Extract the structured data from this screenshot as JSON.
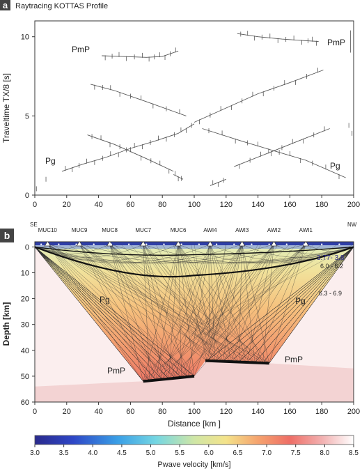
{
  "panel_a": {
    "letter": "a",
    "title": "Raytracing KOTTAS Profile",
    "ylabel": "Traveltime TX/8 [s]",
    "xticks": [
      "0",
      "20",
      "40",
      "60",
      "80",
      "100",
      "120",
      "140",
      "160",
      "180",
      "200"
    ],
    "yticks": [
      "0",
      "5",
      "10"
    ],
    "phase_labels": [
      "PmP",
      "PmP",
      "Pg",
      "Pg"
    ]
  },
  "panel_b": {
    "letter": "b",
    "se": "SE",
    "nw": "NW",
    "stations": [
      "MUC10",
      "MUC9",
      "MUC8",
      "MUC7",
      "MUC6",
      "AWI4",
      "AWI3",
      "AWI2",
      "AWI1"
    ],
    "velocity_labels": [
      "3.77- 3.8",
      "6.0 - 6.2",
      "6.3 - 6.9"
    ],
    "phase_labels": [
      "Pg",
      "Pg",
      "PmP",
      "PmP"
    ],
    "ylabel": "Depth [km]",
    "xlabel": "Distance [km ]",
    "xticks": [
      "0",
      "20",
      "40",
      "60",
      "80",
      "100",
      "120",
      "140",
      "160",
      "180",
      "200"
    ],
    "yticks": [
      "0",
      "10",
      "20",
      "30",
      "40",
      "50",
      "60"
    ]
  },
  "colorbar": {
    "ticks": [
      "3.0",
      "3.5",
      "4.0",
      "4.5",
      "5.0",
      "5.5",
      "6.0",
      "6.5",
      "7.0",
      "7.5",
      "8.0",
      "8.5"
    ],
    "label": "Pwave velocity [km/s]"
  },
  "chart_data": [
    {
      "type": "scatter",
      "title": "Raytracing KOTTAS Profile",
      "xlabel": "",
      "ylabel": "Traveltime TX/8 [s]",
      "xlim": [
        0,
        200
      ],
      "ylim": [
        0,
        11
      ],
      "series": [
        {
          "name": "PmP",
          "x": [
            42,
            55,
            70,
            80,
            90
          ],
          "y": [
            8.8,
            8.75,
            8.7,
            8.75,
            9.1
          ]
        },
        {
          "name": "PmP",
          "x": [
            127,
            140,
            155,
            170,
            178
          ],
          "y": [
            10.2,
            10.0,
            9.85,
            9.75,
            9.7
          ]
        },
        {
          "name": "Pg",
          "x": [
            17,
            30,
            45,
            60,
            75,
            90,
            100
          ],
          "y": [
            1.5,
            1.95,
            2.4,
            2.95,
            3.4,
            3.9,
            4.5
          ]
        },
        {
          "name": "Pg",
          "x": [
            100,
            120,
            140,
            160,
            181
          ],
          "y": [
            4.6,
            5.5,
            6.4,
            7.1,
            7.9
          ]
        },
        {
          "name": "Pg",
          "x": [
            33,
            50,
            70,
            87
          ],
          "y": [
            3.8,
            3.2,
            2.3,
            1.5
          ]
        },
        {
          "name": "Pg",
          "x": [
            87,
            93
          ],
          "y": [
            1.3,
            1.0
          ]
        },
        {
          "name": "Pg",
          "x": [
            35,
            50,
            70,
            95
          ],
          "y": [
            7.0,
            6.6,
            5.9,
            5.0
          ]
        },
        {
          "name": "Pg",
          "x": [
            105,
            130,
            150,
            170,
            195
          ],
          "y": [
            4.2,
            3.4,
            2.8,
            2.2,
            1.1
          ]
        },
        {
          "name": "Pg",
          "x": [
            110,
            120
          ],
          "y": [
            0.6,
            1.0
          ]
        },
        {
          "name": "Pg",
          "x": [
            125,
            145,
            165,
            185
          ],
          "y": [
            1.8,
            2.6,
            3.4,
            4.2
          ]
        }
      ]
    },
    {
      "type": "heatmap",
      "xlabel": "Distance [km ]",
      "ylabel": "Depth [km]",
      "xlim": [
        0,
        200
      ],
      "ylim": [
        60,
        -2
      ],
      "colorbar": {
        "label": "Pwave velocity [km/s]",
        "range": [
          3.0,
          8.5
        ]
      },
      "stations_km": [
        8,
        28,
        47,
        68,
        90,
        110,
        130,
        150,
        170
      ],
      "station_labels": [
        "MUC10",
        "MUC9",
        "MUC8",
        "MUC7",
        "MUC6",
        "AWI4",
        "AWI3",
        "AWI2",
        "AWI1"
      ],
      "moho": {
        "x": [
          0,
          68,
          100,
          107,
          147,
          200
        ],
        "y": [
          54,
          52,
          50,
          44,
          45,
          47
        ]
      },
      "velocity_layers": [
        "3.77- 3.8",
        "6.0 - 6.2",
        "6.3 - 6.9"
      ]
    }
  ]
}
